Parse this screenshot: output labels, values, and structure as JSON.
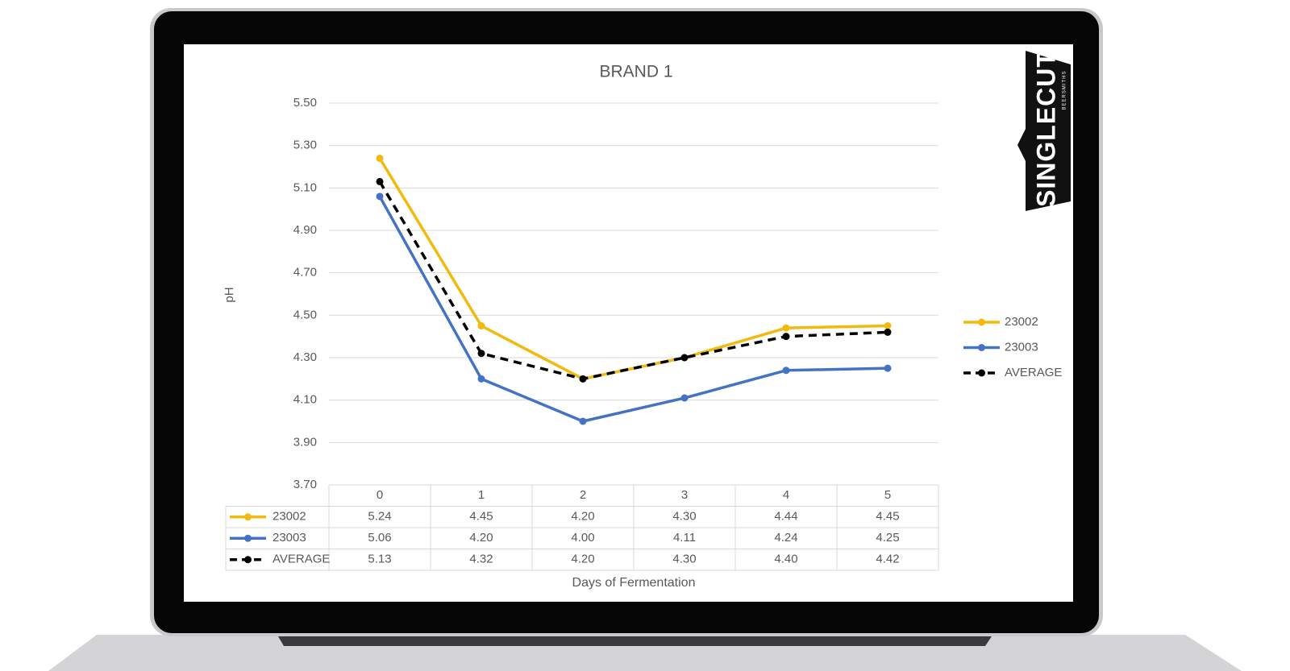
{
  "chart_data": {
    "type": "line",
    "title": "BRAND 1",
    "y_label": "pH",
    "x_label": "Days of Fermentation",
    "categories": [
      "0",
      "1",
      "2",
      "3",
      "4",
      "5"
    ],
    "ylim": [
      3.7,
      5.5
    ],
    "yticks": [
      {
        "value": 3.7,
        "label": "3.70"
      },
      {
        "value": 3.9,
        "label": "3.90"
      },
      {
        "value": 4.1,
        "label": "4.10"
      },
      {
        "value": 4.3,
        "label": "4.30"
      },
      {
        "value": 4.5,
        "label": "4.50"
      },
      {
        "value": 4.7,
        "label": "4.70"
      },
      {
        "value": 4.9,
        "label": "4.90"
      },
      {
        "value": 5.1,
        "label": "5.10"
      },
      {
        "value": 5.3,
        "label": "5.30"
      },
      {
        "value": 5.5,
        "label": "5.50"
      }
    ],
    "grid": true,
    "legend": "right",
    "data_table": true,
    "series": [
      {
        "name": "23002",
        "color": "#f2b90f",
        "dashed": false,
        "values": [
          5.24,
          4.45,
          4.2,
          4.3,
          4.44,
          4.45
        ],
        "value_labels": [
          "5.24",
          "4.45",
          "4.20",
          "4.30",
          "4.44",
          "4.45"
        ]
      },
      {
        "name": "23003",
        "color": "#4472c4",
        "dashed": false,
        "values": [
          5.06,
          4.2,
          4.0,
          4.11,
          4.24,
          4.25
        ],
        "value_labels": [
          "5.06",
          "4.20",
          "4.00",
          "4.11",
          "4.24",
          "4.25"
        ]
      },
      {
        "name": "AVERAGE",
        "color": "#000000",
        "dashed": true,
        "values": [
          5.13,
          4.32,
          4.2,
          4.3,
          4.4,
          4.42
        ],
        "value_labels": [
          "5.13",
          "4.32",
          "4.20",
          "4.30",
          "4.40",
          "4.42"
        ]
      }
    ]
  },
  "logo": {
    "name": "SINGLECUT",
    "tagline": "BEERSMITHS"
  }
}
